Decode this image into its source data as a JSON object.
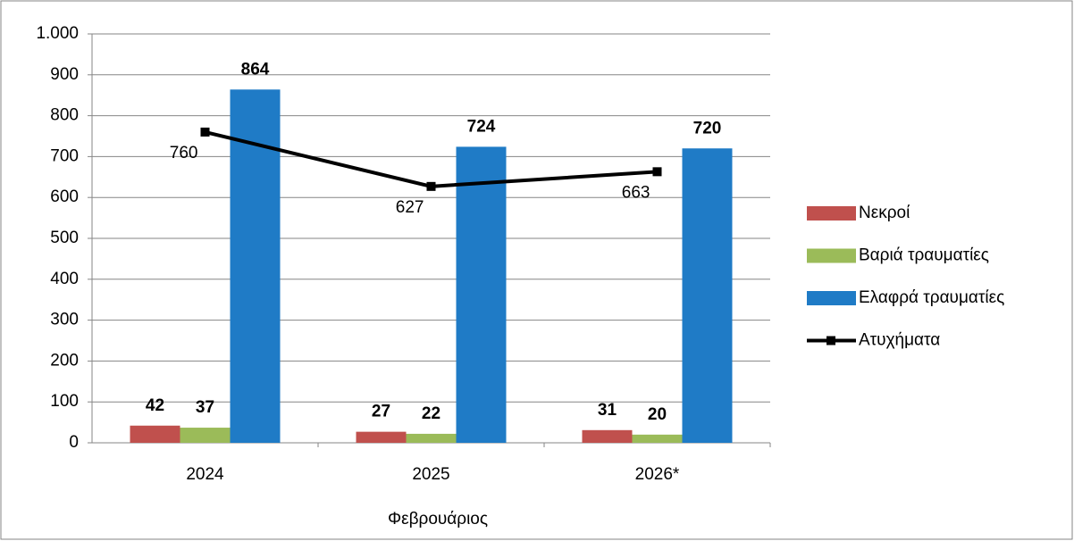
{
  "chart_data": {
    "type": "bar",
    "x_label": "Φεβρουάριος",
    "categories": [
      "2024",
      "2025",
      "2026*"
    ],
    "series": [
      {
        "name": "Νεκροί",
        "color": "#c0504d",
        "values": [
          42,
          27,
          31
        ]
      },
      {
        "name": "Βαριά τραυματίες",
        "color": "#9bbb59",
        "values": [
          37,
          22,
          20
        ]
      },
      {
        "name": "Ελαφρά τραυματίες",
        "color": "#1f7bc6",
        "values": [
          864,
          724,
          720
        ]
      },
      {
        "name": "Ατυχήματα",
        "color": "#000000",
        "type": "line",
        "values": [
          760,
          627,
          663
        ]
      }
    ],
    "ylim": [
      0,
      1000
    ],
    "yticks": [
      0,
      100,
      200,
      300,
      400,
      500,
      600,
      700,
      800,
      900,
      {
        "value": 1000,
        "label": "1.000"
      }
    ],
    "grid": true,
    "legend": "right"
  }
}
